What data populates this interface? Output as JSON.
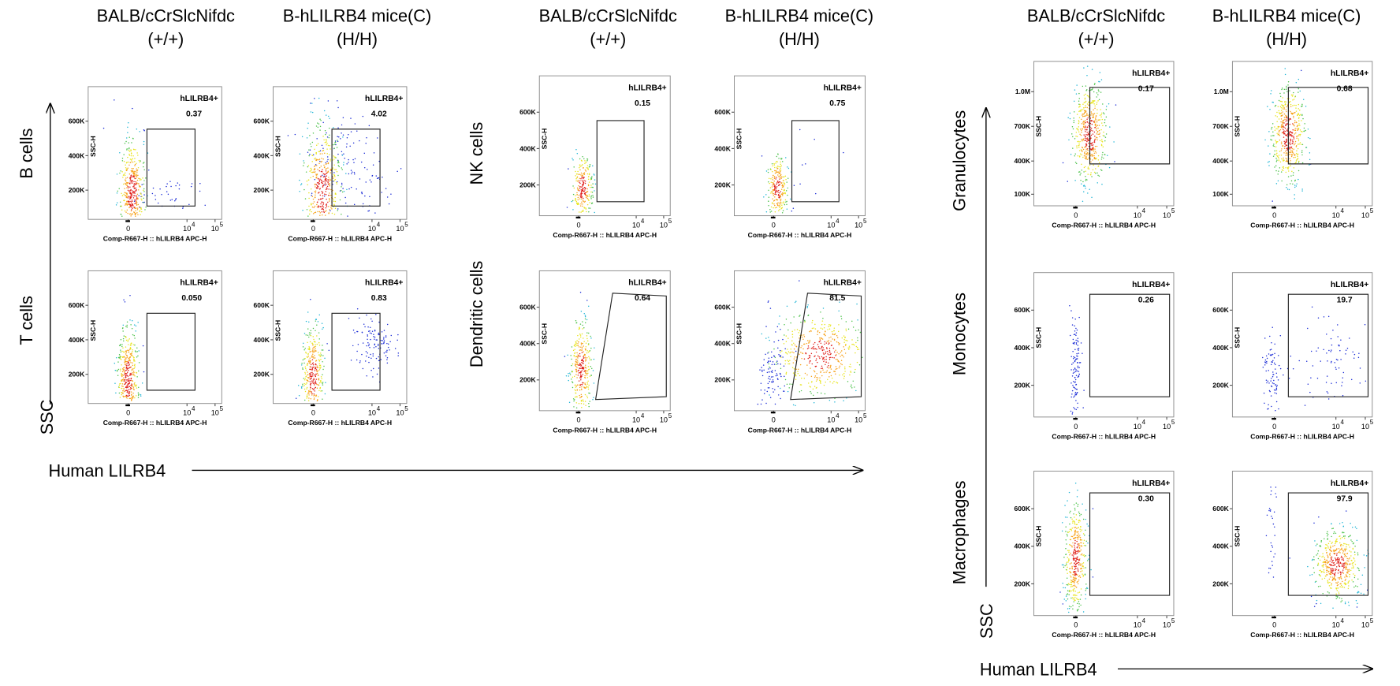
{
  "panel_groups": [
    {
      "column_headers": [
        {
          "line1": "BALB/cCrSlcNifdc",
          "line2": "(+/+)"
        },
        {
          "line1": "B-hLILRB4 mice(C)",
          "line2": "(H/H)"
        }
      ],
      "y_axis_label": "SSC",
      "x_axis_label": "Human LILRB4",
      "rows": [
        {
          "label": "B cells",
          "plots": [
            {
              "percent": "0.37",
              "yticks": [
                "600K",
                "400K",
                "200K"
              ]
            },
            {
              "percent": "4.02",
              "yticks": [
                "600K",
                "400K",
                "200K"
              ]
            }
          ]
        },
        {
          "label": "T cells",
          "plots": [
            {
              "percent": "0.050",
              "yticks": [
                "600K",
                "400K",
                "200K"
              ]
            },
            {
              "percent": "0.83",
              "yticks": [
                "600K",
                "400K",
                "200K"
              ]
            }
          ]
        }
      ]
    },
    {
      "column_headers": [
        {
          "line1": "BALB/cCrSlcNifdc",
          "line2": "(+/+)"
        },
        {
          "line1": "B-hLILRB4 mice(C)",
          "line2": "(H/H)"
        }
      ],
      "rows": [
        {
          "label": "NK cells",
          "plots": [
            {
              "percent": "0.15",
              "yticks": [
                "600K",
                "400K",
                "200K"
              ]
            },
            {
              "percent": "0.75",
              "yticks": [
                "600K",
                "400K",
                "200K"
              ]
            }
          ]
        },
        {
          "label": "Dendritic cells",
          "plots": [
            {
              "percent": "0.64",
              "yticks": [
                "600K",
                "400K",
                "200K"
              ]
            },
            {
              "percent": "81.5",
              "yticks": [
                "600K",
                "400K",
                "200K"
              ]
            }
          ]
        }
      ]
    },
    {
      "column_headers": [
        {
          "line1": "BALB/cCrSlcNifdc",
          "line2": "(+/+)"
        },
        {
          "line1": "B-hLILRB4 mice(C)",
          "line2": "(H/H)"
        }
      ],
      "y_axis_label": "SSC",
      "x_axis_label": "Human LILRB4",
      "rows": [
        {
          "label": "Granulocytes",
          "plots": [
            {
              "percent": "0.17",
              "yticks": [
                "1.0M",
                "700K",
                "400K",
                "100K"
              ]
            },
            {
              "percent": "0.68",
              "yticks": [
                "1.0M",
                "700K",
                "400K",
                "100K"
              ]
            }
          ]
        },
        {
          "label": "Monocytes",
          "plots": [
            {
              "percent": "0.26",
              "yticks": [
                "600K",
                "400K",
                "200K"
              ]
            },
            {
              "percent": "19.7",
              "yticks": [
                "600K",
                "400K",
                "200K"
              ]
            }
          ]
        },
        {
          "label": "Macrophages",
          "plots": [
            {
              "percent": "0.30",
              "yticks": [
                "600K",
                "400K",
                "200K"
              ]
            },
            {
              "percent": "97.9",
              "yticks": [
                "600K",
                "400K",
                "200K"
              ]
            }
          ]
        }
      ]
    }
  ],
  "plot_texts": {
    "gate_label": "hLILRB4+",
    "y_title": "SSC-H",
    "x_title": "Comp-R667-H :: hLILRB4 APC-H",
    "xticks": [
      {
        "base": "0"
      },
      {
        "base": "10",
        "exp": "4"
      },
      {
        "base": "10",
        "exp": "5"
      }
    ]
  }
}
